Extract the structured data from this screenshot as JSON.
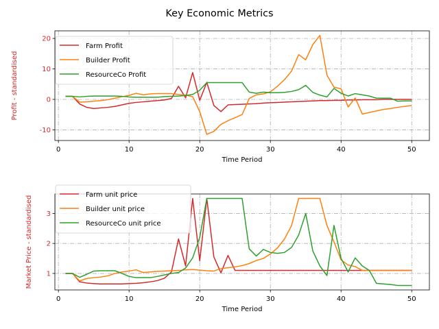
{
  "figure": {
    "title": "Key Economic Metrics"
  },
  "chart_data": [
    {
      "type": "line",
      "title": "",
      "xlabel": "Time Period",
      "ylabel": "Profit - standardised",
      "ylabel_color": "#d62728",
      "xlim": [
        -0.5,
        52.5
      ],
      "ylim": [
        -13.5,
        22.5
      ],
      "xticks": [
        0,
        10,
        20,
        30,
        40,
        50
      ],
      "yticks": [
        -10,
        0,
        10,
        20
      ],
      "grid": true,
      "legend_position": "upper-left",
      "x": [
        1,
        2,
        3,
        4,
        5,
        6,
        7,
        8,
        9,
        10,
        11,
        12,
        13,
        14,
        15,
        16,
        17,
        18,
        19,
        20,
        21,
        22,
        23,
        24,
        25,
        26,
        27,
        28,
        29,
        30,
        31,
        32,
        33,
        34,
        35,
        36,
        37,
        38,
        39,
        40,
        41,
        42,
        43,
        44,
        45,
        46,
        47,
        48,
        49,
        50
      ],
      "series": [
        {
          "name": "Farm Profit",
          "color": "#d62728",
          "values": [
            1.0,
            1.0,
            -1.5,
            -2.6,
            -3.0,
            -2.8,
            -2.6,
            -2.3,
            -1.8,
            -1.3,
            -1.0,
            -0.8,
            -0.6,
            -0.4,
            -0.2,
            0.3,
            4.3,
            0.5,
            8.8,
            -0.3,
            5.6,
            -2.0,
            -4.0,
            -1.8,
            -1.7,
            -1.6,
            -1.5,
            -1.4,
            -1.2,
            -1.1,
            -1.0,
            -0.9,
            -0.8,
            -0.7,
            -0.6,
            -0.5,
            -0.4,
            -0.4,
            -0.3,
            -0.3,
            -0.2,
            -0.2,
            -0.1,
            -0.1,
            -0.1,
            0.0,
            0.0,
            0.0,
            0.0,
            0.0
          ]
        },
        {
          "name": "Builder Profit",
          "color": "#ff7f0e",
          "values": [
            1.0,
            1.0,
            -0.9,
            -0.8,
            -0.6,
            -0.4,
            -0.1,
            0.4,
            0.9,
            1.3,
            2.0,
            1.5,
            1.8,
            1.9,
            1.9,
            1.9,
            1.6,
            1.4,
            0.9,
            -4.0,
            -11.5,
            -10.5,
            -8.2,
            -7.0,
            -6.0,
            -5.0,
            0.3,
            1.5,
            1.8,
            2.5,
            4.3,
            6.5,
            9.3,
            14.7,
            13.0,
            18.0,
            21.0,
            8.0,
            4.0,
            3.5,
            -2.5,
            0.5,
            -4.8,
            -4.3,
            -3.8,
            -3.3,
            -3.0,
            -2.6,
            -2.3,
            -2.0
          ]
        },
        {
          "name": "ResourceCo Profit",
          "color": "#2ca02c",
          "values": [
            1.0,
            1.0,
            0.8,
            1.0,
            1.1,
            1.1,
            1.1,
            1.1,
            1.0,
            0.8,
            0.7,
            0.7,
            0.7,
            0.7,
            0.9,
            1.0,
            1.1,
            1.3,
            1.6,
            3.0,
            5.5,
            5.5,
            5.5,
            5.5,
            5.5,
            5.5,
            2.4,
            2.0,
            2.4,
            2.2,
            2.2,
            2.3,
            2.6,
            3.2,
            4.6,
            2.3,
            1.4,
            0.8,
            3.6,
            2.0,
            1.1,
            1.9,
            1.5,
            1.1,
            0.4,
            0.4,
            0.4,
            -0.6,
            -0.5,
            -0.5
          ]
        }
      ]
    },
    {
      "type": "line",
      "title": "",
      "xlabel": "Time Period",
      "ylabel": "Market Price - standardised",
      "ylabel_color": "#d62728",
      "xlim": [
        -0.5,
        52.5
      ],
      "ylim": [
        0.45,
        3.65
      ],
      "xticks": [
        0,
        10,
        20,
        30,
        40,
        50
      ],
      "yticks": [
        1,
        2,
        3
      ],
      "grid": true,
      "legend_position": "upper-left",
      "x": [
        1,
        2,
        3,
        4,
        5,
        6,
        7,
        8,
        9,
        10,
        11,
        12,
        13,
        14,
        15,
        16,
        17,
        18,
        19,
        20,
        21,
        22,
        23,
        24,
        25,
        26,
        27,
        28,
        29,
        30,
        31,
        32,
        33,
        34,
        35,
        36,
        37,
        38,
        39,
        40,
        41,
        42,
        43,
        44,
        45,
        46,
        47,
        48,
        49,
        50
      ],
      "series": [
        {
          "name": "Farm unit price",
          "color": "#d62728",
          "values": [
            1.0,
            1.0,
            0.72,
            0.68,
            0.66,
            0.65,
            0.65,
            0.65,
            0.65,
            0.66,
            0.67,
            0.69,
            0.72,
            0.76,
            0.84,
            1.05,
            2.15,
            1.25,
            3.5,
            1.42,
            3.5,
            1.55,
            1.02,
            1.6,
            1.1,
            1.1,
            1.1,
            1.1,
            1.1,
            1.1,
            1.1,
            1.1,
            1.1,
            1.1,
            1.1,
            1.1,
            1.1,
            1.1,
            1.1,
            1.1,
            1.1,
            1.1,
            1.1,
            1.1,
            1.1,
            1.1,
            1.1,
            1.1,
            1.1,
            1.1
          ]
        },
        {
          "name": "Builder unit price",
          "color": "#ff7f0e",
          "values": [
            1.0,
            1.0,
            0.75,
            0.83,
            0.86,
            0.88,
            0.92,
            1.0,
            1.05,
            1.08,
            1.12,
            1.03,
            1.05,
            1.07,
            1.08,
            1.09,
            1.1,
            1.12,
            1.13,
            1.11,
            1.09,
            1.08,
            1.16,
            1.19,
            1.22,
            1.26,
            1.33,
            1.43,
            1.5,
            1.65,
            1.85,
            2.15,
            2.6,
            3.5,
            3.5,
            3.5,
            3.5,
            2.6,
            2.05,
            1.45,
            1.28,
            1.23,
            1.1,
            1.1,
            1.1,
            1.1,
            1.1,
            1.1,
            1.1,
            1.1
          ]
        },
        {
          "name": "ResourceCo unit price",
          "color": "#2ca02c",
          "values": [
            1.0,
            1.0,
            0.87,
            0.97,
            1.08,
            1.09,
            1.09,
            1.09,
            1.0,
            0.9,
            0.86,
            0.86,
            0.86,
            0.9,
            0.95,
            1.0,
            1.03,
            1.18,
            1.52,
            2.2,
            3.5,
            3.5,
            3.5,
            3.5,
            3.5,
            3.5,
            1.82,
            1.58,
            1.8,
            1.7,
            1.67,
            1.7,
            1.87,
            2.28,
            3.0,
            1.75,
            1.25,
            0.93,
            2.6,
            1.5,
            1.05,
            1.52,
            1.25,
            1.1,
            0.67,
            0.65,
            0.63,
            0.6,
            0.6,
            0.6
          ]
        }
      ]
    }
  ]
}
